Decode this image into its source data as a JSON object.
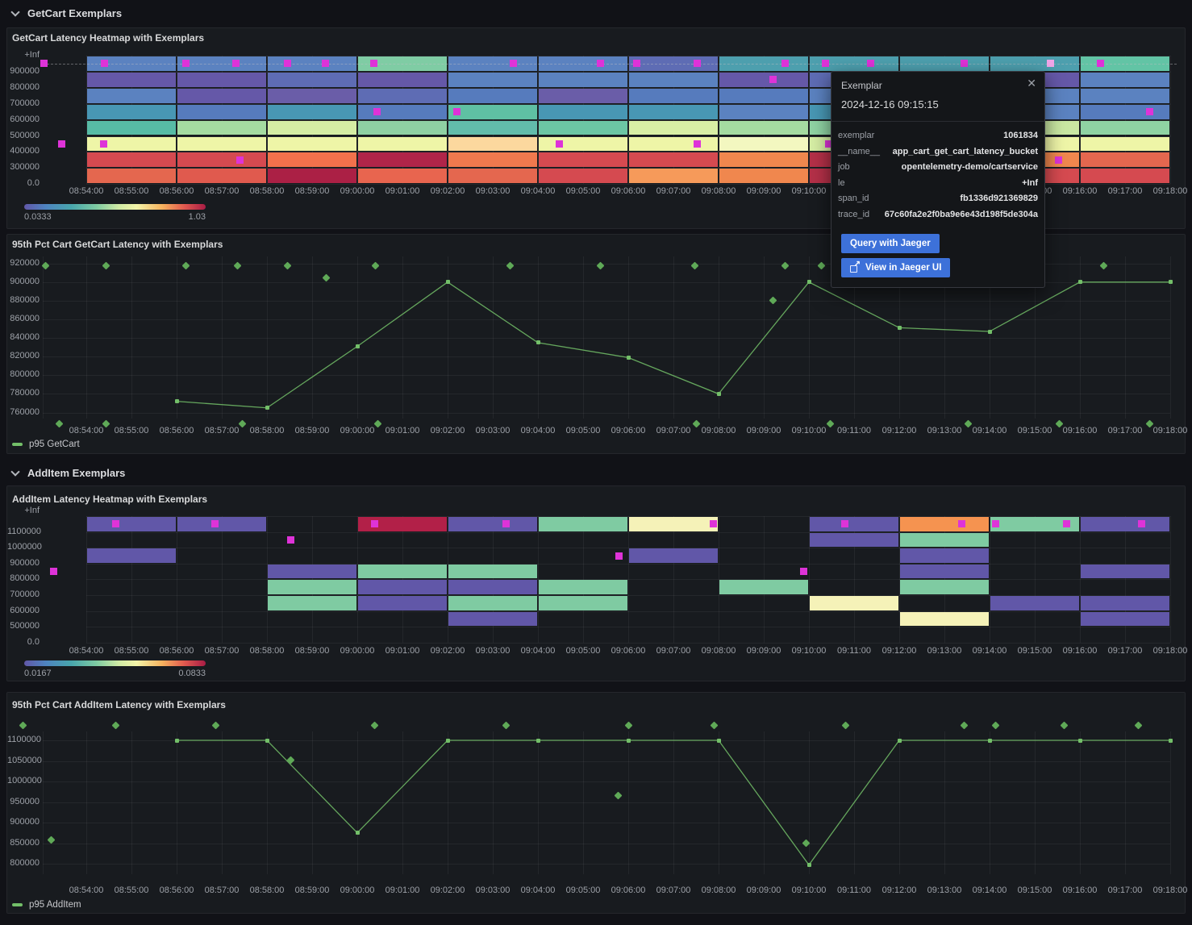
{
  "sections": [
    {
      "title": "GetCart Exemplars"
    },
    {
      "title": "AddItem Exemplars"
    }
  ],
  "tooltip": {
    "title": "Exemplar",
    "timestamp": "2024-12-16 09:15:15",
    "fields": [
      {
        "name": "exemplar",
        "value": "1061834"
      },
      {
        "name": "__name__",
        "value": "app_cart_get_cart_latency_bucket"
      },
      {
        "name": "job",
        "value": "opentelemetry-demo/cartservice"
      },
      {
        "name": "le",
        "value": "+Inf"
      },
      {
        "name": "span_id",
        "value": "fb1336d921369829"
      },
      {
        "name": "trace_id",
        "value": "67c60fa2e2f0ba9e6e43d198f5de304a"
      }
    ],
    "buttons": [
      {
        "label": "Query with Jaeger"
      },
      {
        "label": "View in Jaeger UI",
        "icon": "external-link-icon"
      }
    ],
    "accent": "#3d71d9"
  },
  "chart_data": [
    {
      "type": "heatmap",
      "title": "GetCart Latency Heatmap with Exemplars",
      "y_ticks": [
        "+Inf",
        "900000",
        "800000",
        "700000",
        "600000",
        "500000",
        "400000",
        "300000",
        "0.0"
      ],
      "x_ticks": [
        "08:54:00",
        "08:55:00",
        "08:56:00",
        "08:57:00",
        "08:58:00",
        "08:59:00",
        "09:00:00",
        "09:01:00",
        "09:02:00",
        "09:03:00",
        "09:04:00",
        "09:05:00",
        "09:06:00",
        "09:07:00",
        "09:08:00",
        "09:09:00",
        "09:10:00",
        "09:11:00",
        "09:12:00",
        "09:13:00",
        "09:14:00",
        "09:15:00",
        "09:16:00",
        "09:17:00",
        "09:18:00"
      ],
      "bucket_rows": [
        "900000-+Inf",
        "800000-900000",
        "700000-800000",
        "600000-700000",
        "500000-600000",
        "400000-500000",
        "300000-400000",
        "0-300000"
      ],
      "legend": {
        "min": "0.0333",
        "max": "1.03"
      },
      "exemplar_color": "#de33d8",
      "exemplar_highlight": "#f0a6e8",
      "columns": [
        {
          "t": "08:54",
          "colors": [
            "#5b82c0",
            "#6558a8",
            "#5b82c0",
            "#4897b4",
            "#57bba5",
            "#eef5a7",
            "#d54a50",
            "#e4674f"
          ]
        },
        {
          "t": "08:56",
          "colors": [
            "#5b82c0",
            "#6558a8",
            "#6558a8",
            "#567bbd",
            "#a5dba1",
            "#eef5a7",
            "#d54a50",
            "#e05a4e"
          ]
        },
        {
          "t": "08:58",
          "colors": [
            "#5b82c0",
            "#5e6cb4",
            "#6a5da8",
            "#4897b4",
            "#d5eda4",
            "#eef5a7",
            "#f2714c",
            "#ab2045"
          ]
        },
        {
          "t": "09:00",
          "colors": [
            "#7fcca4",
            "#6558a8",
            "#5e6cb4",
            "#567bbd",
            "#8fd0a3",
            "#eef5a7",
            "#b02549",
            "#e8654f"
          ]
        },
        {
          "t": "09:02",
          "colors": [
            "#5b82c0",
            "#5b82c0",
            "#567bbd",
            "#5fc0a3",
            "#62bcab",
            "#fcd89e",
            "#f0794e",
            "#e4674f"
          ]
        },
        {
          "t": "09:04",
          "colors": [
            "#5b82c0",
            "#5b82c0",
            "#6a5da8",
            "#4897b4",
            "#6cc6a4",
            "#eef5a7",
            "#d54a50",
            "#d54a50"
          ]
        },
        {
          "t": "09:06",
          "colors": [
            "#5e6cb4",
            "#5b82c0",
            "#567bbd",
            "#4897b4",
            "#d9efa5",
            "#eef5a7",
            "#d54a50",
            "#f69a5a"
          ]
        },
        {
          "t": "09:08",
          "colors": [
            "#4d9fae",
            "#6558a8",
            "#567bbd",
            "#5b82c0",
            "#a5dba1",
            "#f3f7c0",
            "#f0874e",
            "#f0874e"
          ]
        },
        {
          "t": "09:10",
          "colors": [
            "#4d9fae",
            "#5e6cb4",
            "#5b82c0",
            "#4897b4",
            "#8fd3a3",
            "#d5eda4",
            "#b43048",
            "#b43048"
          ]
        },
        {
          "t": "09:12",
          "colors": [
            "#4d9fae",
            "#5b82c0",
            "#567bbd",
            "#4897b4",
            "#a5dba1",
            "#eef5a7",
            "#d54a50",
            "#e4674f"
          ]
        },
        {
          "t": "09:14",
          "colors": [
            "#4d9fae",
            "#6558a8",
            "#5b82c0",
            "#5b82c0",
            "#c9e7a2",
            "#eef5a7",
            "#f0874e",
            "#d54a50"
          ]
        },
        {
          "t": "09:16",
          "colors": [
            "#62c4a5",
            "#5b82c0",
            "#5b82c0",
            "#567bbd",
            "#8fd3a3",
            "#eef5a7",
            "#e4674f",
            "#d54a50"
          ]
        }
      ],
      "exemplars": [
        {
          "m": -0.93,
          "row": 0
        },
        {
          "m": 0.41,
          "row": 0
        },
        {
          "m": 2.2,
          "row": 0
        },
        {
          "m": 3.32,
          "row": 0
        },
        {
          "m": 4.45,
          "row": 0
        },
        {
          "m": 5.29,
          "row": 0
        },
        {
          "m": 6.36,
          "row": 0
        },
        {
          "m": 9.46,
          "row": 0
        },
        {
          "m": 11.39,
          "row": 0
        },
        {
          "m": 12.18,
          "row": 0
        },
        {
          "m": 13.52,
          "row": 0
        },
        {
          "m": 15.48,
          "row": 0
        },
        {
          "m": 16.36,
          "row": 0
        },
        {
          "m": 17.36,
          "row": 0
        },
        {
          "m": 19.43,
          "row": 0
        },
        {
          "m": 21.34,
          "row": 0,
          "hl": true
        },
        {
          "m": 22.46,
          "row": 0
        },
        {
          "m": 15.21,
          "row": 1
        },
        {
          "m": 6.43,
          "row": 3
        },
        {
          "m": 8.2,
          "row": 3
        },
        {
          "m": 23.55,
          "row": 3
        },
        {
          "m": -0.55,
          "row": 5
        },
        {
          "m": 0.38,
          "row": 5
        },
        {
          "m": 10.48,
          "row": 5
        },
        {
          "m": 13.52,
          "row": 5
        },
        {
          "m": 16.43,
          "row": 5
        },
        {
          "m": 3.41,
          "row": 6
        },
        {
          "m": 21.52,
          "row": 6
        }
      ]
    },
    {
      "type": "line",
      "title": "95th Pct Cart GetCart Latency with Exemplars",
      "y_ticks": [
        "920000",
        "900000",
        "880000",
        "860000",
        "840000",
        "820000",
        "800000",
        "780000",
        "760000"
      ],
      "x_ticks": [
        "08:54:00",
        "08:55:00",
        "08:56:00",
        "08:57:00",
        "08:58:00",
        "08:59:00",
        "09:00:00",
        "09:01:00",
        "09:02:00",
        "09:03:00",
        "09:04:00",
        "09:05:00",
        "09:06:00",
        "09:07:00",
        "09:08:00",
        "09:09:00",
        "09:10:00",
        "09:11:00",
        "09:12:00",
        "09:13:00",
        "09:14:00",
        "09:15:00",
        "09:16:00",
        "09:17:00",
        "09:18:00"
      ],
      "ylim": [
        760000,
        920000
      ],
      "series": [
        {
          "name": "p95 GetCart",
          "color": "#73bf69",
          "x_minutes": [
            2,
            4,
            6,
            8,
            10,
            12,
            14,
            16,
            18,
            20,
            22,
            24
          ],
          "x_times": [
            "08:56",
            "08:58",
            "09:00",
            "09:02",
            "09:04",
            "09:06",
            "09:08",
            "09:10",
            "09:12",
            "09:14",
            "09:16",
            "09:18"
          ],
          "values": [
            772000,
            765000,
            831000,
            900000,
            835000,
            819000,
            780000,
            900000,
            851000,
            847000,
            900000,
            900000
          ]
        }
      ],
      "exemplars": [
        {
          "m": -0.91,
          "v": 918000
        },
        {
          "m": 0.43,
          "v": 918000
        },
        {
          "m": 2.21,
          "v": 918000
        },
        {
          "m": 3.34,
          "v": 918000
        },
        {
          "m": 4.45,
          "v": 918000
        },
        {
          "m": 5.32,
          "v": 905000
        },
        {
          "m": 6.41,
          "v": 918000
        },
        {
          "m": 9.38,
          "v": 918000
        },
        {
          "m": 11.39,
          "v": 918000
        },
        {
          "m": 13.48,
          "v": 918000
        },
        {
          "m": 15.48,
          "v": 918000
        },
        {
          "m": 16.27,
          "v": 918000
        },
        {
          "m": 22.52,
          "v": 918000
        },
        {
          "m": 15.21,
          "v": 880000
        },
        {
          "m": -0.59,
          "v": 748000
        },
        {
          "m": 0.43,
          "v": 748000
        },
        {
          "m": 3.45,
          "v": 748000
        },
        {
          "m": 6.45,
          "v": 748000
        },
        {
          "m": 13.5,
          "v": 748000
        },
        {
          "m": 16.48,
          "v": 748000
        },
        {
          "m": 19.52,
          "v": 748000
        },
        {
          "m": 21.54,
          "v": 748000
        },
        {
          "m": 23.55,
          "v": 748000
        }
      ]
    },
    {
      "type": "heatmap",
      "title": "AddItem Latency Heatmap with Exemplars",
      "y_ticks": [
        "+Inf",
        "1100000",
        "1000000",
        "900000",
        "800000",
        "700000",
        "600000",
        "500000",
        "0.0"
      ],
      "x_ticks": [
        "08:54:00",
        "08:55:00",
        "08:56:00",
        "08:57:00",
        "08:58:00",
        "08:59:00",
        "09:00:00",
        "09:01:00",
        "09:02:00",
        "09:03:00",
        "09:04:00",
        "09:05:00",
        "09:06:00",
        "09:07:00",
        "09:08:00",
        "09:09:00",
        "09:10:00",
        "09:11:00",
        "09:12:00",
        "09:13:00",
        "09:14:00",
        "09:15:00",
        "09:16:00",
        "09:17:00",
        "09:18:00"
      ],
      "bucket_rows": [
        "1100000-+Inf",
        "1000000-1100000",
        "900000-1000000",
        "800000-900000",
        "700000-800000",
        "600000-700000",
        "500000-600000"
      ],
      "legend": {
        "min": "0.0167",
        "max": "0.0833"
      },
      "exemplar_color": "#de33d8",
      "exemplar_highlight": "#f0a6e8",
      "columns": [
        {
          "t": "08:54",
          "colors": [
            "#6157a8",
            null,
            "#6157a8",
            null,
            null,
            null,
            null
          ]
        },
        {
          "t": "08:56",
          "colors": [
            "#6157a8",
            null,
            null,
            null,
            null,
            null,
            null
          ]
        },
        {
          "t": "08:58",
          "colors": [
            null,
            null,
            null,
            "#6157a8",
            "#7fcba2",
            "#7fcba2",
            null
          ]
        },
        {
          "t": "09:00",
          "colors": [
            "#b22048",
            null,
            null,
            "#7fcba2",
            "#6157a8",
            "#6157a8",
            null
          ]
        },
        {
          "t": "09:02",
          "colors": [
            "#6157a8",
            null,
            null,
            "#7fcba2",
            "#6157a8",
            "#7fcba2",
            "#6157a8"
          ]
        },
        {
          "t": "09:04",
          "colors": [
            "#7fcba2",
            null,
            null,
            null,
            "#7fcba2",
            "#7fcba2",
            null
          ]
        },
        {
          "t": "09:06",
          "colors": [
            "#f5f2b8",
            null,
            "#6157a8",
            null,
            null,
            null,
            null
          ]
        },
        {
          "t": "09:08",
          "colors": [
            null,
            null,
            null,
            null,
            "#7fcba2",
            null,
            null
          ]
        },
        {
          "t": "09:10",
          "colors": [
            "#6157a8",
            "#6157a8",
            null,
            null,
            null,
            "#f5f2b8",
            null
          ]
        },
        {
          "t": "09:12",
          "colors": [
            "#f59350",
            "#7fcba2",
            "#6157a8",
            "#6157a8",
            "#7fcba2",
            null,
            "#f5f2b8"
          ]
        },
        {
          "t": "09:14",
          "colors": [
            "#7fcba2",
            null,
            null,
            null,
            null,
            "#6157a8",
            null
          ]
        },
        {
          "t": "09:16",
          "colors": [
            "#6157a8",
            null,
            null,
            "#6157a8",
            null,
            "#6157a8",
            "#6157a8"
          ]
        }
      ],
      "exemplars": [
        {
          "m": 0.66,
          "row": 0
        },
        {
          "m": 2.84,
          "row": 0
        },
        {
          "m": 6.39,
          "row": 0
        },
        {
          "m": 9.3,
          "row": 0
        },
        {
          "m": 13.88,
          "row": 0
        },
        {
          "m": 16.8,
          "row": 0
        },
        {
          "m": 19.39,
          "row": 0
        },
        {
          "m": 20.14,
          "row": 0
        },
        {
          "m": 21.71,
          "row": 0
        },
        {
          "m": 23.36,
          "row": 0
        },
        {
          "m": 4.52,
          "row": 1
        },
        {
          "m": 11.79,
          "row": 2
        },
        {
          "m": -0.73,
          "row": 3
        },
        {
          "m": 15.89,
          "row": 3
        }
      ]
    },
    {
      "type": "line",
      "title": "95th Pct Cart AddItem Latency with Exemplars",
      "y_ticks": [
        "1100000",
        "1050000",
        "1000000",
        "950000",
        "900000",
        "850000",
        "800000"
      ],
      "x_ticks": [
        "08:54:00",
        "08:55:00",
        "08:56:00",
        "08:57:00",
        "08:58:00",
        "08:59:00",
        "09:00:00",
        "09:01:00",
        "09:02:00",
        "09:03:00",
        "09:04:00",
        "09:05:00",
        "09:06:00",
        "09:07:00",
        "09:08:00",
        "09:09:00",
        "09:10:00",
        "09:11:00",
        "09:12:00",
        "09:13:00",
        "09:14:00",
        "09:15:00",
        "09:16:00",
        "09:17:00",
        "09:18:00"
      ],
      "ylim": [
        800000,
        1100000
      ],
      "series": [
        {
          "name": "p95 AddItem",
          "color": "#73bf69",
          "x_minutes": [
            2,
            4,
            6,
            8,
            10,
            12,
            14,
            16,
            18,
            20,
            22,
            24
          ],
          "x_times": [
            "08:56",
            "08:58",
            "09:00",
            "09:02",
            "09:04",
            "09:06",
            "09:08",
            "09:10",
            "09:12",
            "09:14",
            "09:16",
            "09:18"
          ],
          "values": [
            1100000,
            1100000,
            875000,
            1100000,
            1100000,
            1100000,
            1100000,
            797000,
            1100000,
            1100000,
            1100000,
            1100000
          ]
        }
      ],
      "exemplars": [
        {
          "m": -1.41,
          "v": 1137000
        },
        {
          "m": 0.66,
          "v": 1137000
        },
        {
          "m": 2.86,
          "v": 1137000
        },
        {
          "m": 6.39,
          "v": 1137000
        },
        {
          "m": 9.3,
          "v": 1137000
        },
        {
          "m": 12.0,
          "v": 1137000
        },
        {
          "m": 13.91,
          "v": 1137000
        },
        {
          "m": 16.82,
          "v": 1137000
        },
        {
          "m": 19.43,
          "v": 1137000
        },
        {
          "m": 20.14,
          "v": 1137000
        },
        {
          "m": 21.66,
          "v": 1137000
        },
        {
          "m": 23.29,
          "v": 1137000
        },
        {
          "m": -0.77,
          "v": 858000
        },
        {
          "m": 4.52,
          "v": 1052000
        },
        {
          "m": 11.77,
          "v": 966000
        },
        {
          "m": 15.93,
          "v": 850000
        }
      ]
    }
  ]
}
